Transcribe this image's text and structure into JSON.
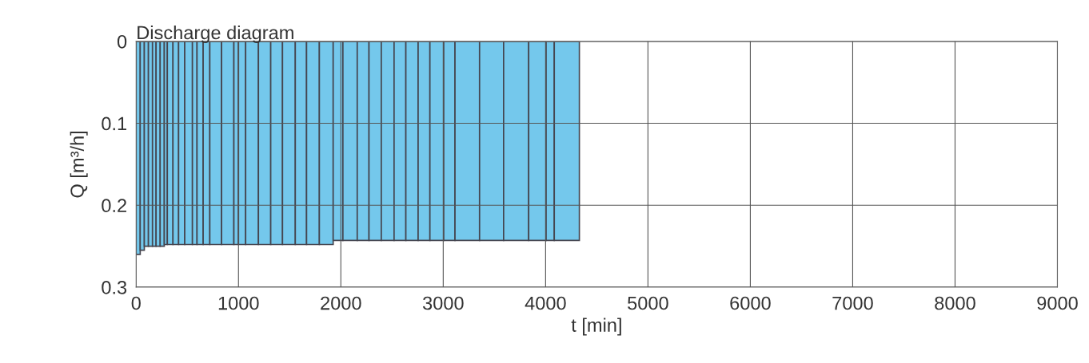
{
  "chart_data": {
    "type": "histogram",
    "title": "Discharge diagram",
    "xlabel": "t [min]",
    "ylabel": "Q [m³/h]",
    "bins": [
      0,
      40,
      80,
      120,
      160,
      195,
      235,
      275,
      305,
      360,
      415,
      475,
      550,
      595,
      655,
      720,
      835,
      955,
      1000,
      1070,
      1195,
      1315,
      1430,
      1555,
      1665,
      1790,
      1925,
      2020,
      2160,
      2275,
      2395,
      2520,
      2635,
      2755,
      2870,
      3005,
      3115,
      3355,
      3590,
      3835,
      4005,
      4085,
      4330
    ],
    "values": [
      0.26,
      0.255,
      0.25,
      0.25,
      0.25,
      0.25,
      0.25,
      0.248,
      0.248,
      0.248,
      0.248,
      0.248,
      0.248,
      0.248,
      0.248,
      0.248,
      0.248,
      0.248,
      0.248,
      0.248,
      0.248,
      0.248,
      0.248,
      0.248,
      0.248,
      0.248,
      0.243,
      0.243,
      0.243,
      0.243,
      0.243,
      0.243,
      0.243,
      0.243,
      0.243,
      0.243,
      0.243,
      0.243,
      0.243,
      0.243,
      0.243,
      0.243
    ],
    "color": "#74c8ec",
    "xlim": [
      0,
      9000
    ],
    "xticks": [
      0,
      1000,
      2000,
      3000,
      4000,
      5000,
      6000,
      7000,
      8000,
      9000
    ],
    "ylim": [
      0.3,
      0
    ],
    "yticks": [
      0,
      0.1,
      0.2,
      0.3
    ],
    "grid": true
  }
}
